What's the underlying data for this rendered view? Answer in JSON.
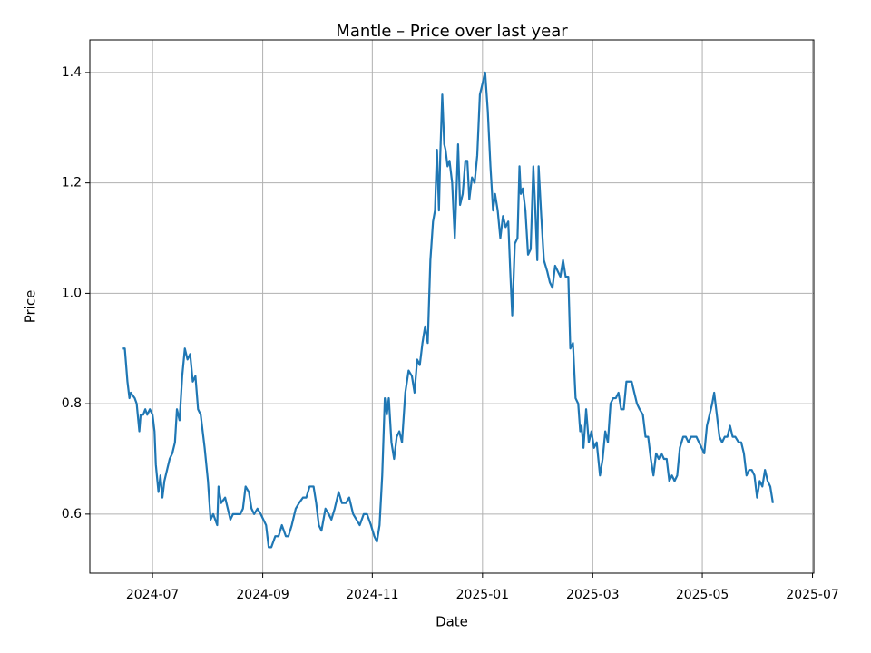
{
  "chart_data": {
    "type": "line",
    "title": "Mantle – Price over last year",
    "x_label": "Date",
    "y_label": "Price",
    "color": "#1f77b4",
    "grid": true,
    "xlim": [
      2024.405,
      2025.502
    ],
    "ylim": [
      0.493,
      1.459
    ],
    "xticks": [
      {
        "value": 2024.5,
        "label": "2024-07"
      },
      {
        "value": 2024.667,
        "label": "2024-09"
      },
      {
        "value": 2024.833,
        "label": "2024-11"
      },
      {
        "value": 2025.0,
        "label": "2025-01"
      },
      {
        "value": 2025.167,
        "label": "2025-03"
      },
      {
        "value": 2025.333,
        "label": "2025-05"
      },
      {
        "value": 2025.5,
        "label": "2025-07"
      }
    ],
    "yticks": [
      0.6,
      0.8,
      {
        "value": 1,
        "label": "1.0"
      },
      1.2,
      1.4
    ],
    "x": [
      2024.455,
      2024.458,
      2024.462,
      2024.465,
      2024.467,
      2024.473,
      2024.476,
      2024.48,
      2024.482,
      2024.486,
      2024.489,
      2024.492,
      2024.496,
      2024.5,
      2024.503,
      2024.505,
      2024.509,
      2024.512,
      2024.515,
      2024.518,
      2024.522,
      2024.526,
      2024.53,
      2024.534,
      2024.537,
      2024.541,
      2024.545,
      2024.549,
      2024.553,
      2024.557,
      2024.561,
      2024.565,
      2024.569,
      2024.573,
      2024.579,
      2024.584,
      2024.588,
      2024.592,
      2024.598,
      2024.6,
      2024.604,
      2024.61,
      2024.614,
      2024.618,
      2024.622,
      2024.627,
      2024.633,
      2024.637,
      2024.641,
      2024.646,
      2024.65,
      2024.654,
      2024.659,
      2024.664,
      2024.668,
      2024.672,
      2024.676,
      2024.68,
      2024.686,
      2024.691,
      2024.696,
      2024.702,
      2024.706,
      2024.711,
      2024.717,
      2024.722,
      2024.728,
      2024.733,
      2024.738,
      2024.744,
      2024.748,
      2024.752,
      2024.756,
      2024.762,
      2024.767,
      2024.771,
      2024.776,
      2024.782,
      2024.787,
      2024.793,
      2024.798,
      2024.804,
      2024.809,
      2024.814,
      2024.82,
      2024.825,
      2024.831,
      2024.836,
      2024.84,
      2024.844,
      2024.848,
      2024.852,
      2024.855,
      2024.858,
      2024.862,
      2024.866,
      2024.87,
      2024.874,
      2024.878,
      2024.883,
      2024.888,
      2024.893,
      2024.897,
      2024.901,
      2024.905,
      2024.909,
      2024.913,
      2024.917,
      2024.921,
      2024.925,
      2024.928,
      2024.931,
      2024.934,
      2024.936,
      2024.939,
      2024.942,
      2024.944,
      2024.947,
      2024.95,
      2024.954,
      2024.958,
      2024.961,
      2024.963,
      2024.966,
      2024.97,
      2024.974,
      2024.977,
      2024.98,
      2024.984,
      2024.988,
      2024.992,
      2024.996,
      2025.0,
      2025.004,
      2025.008,
      2025.012,
      2025.016,
      2025.019,
      2025.023,
      2025.027,
      2025.031,
      2025.035,
      2025.039,
      2025.042,
      2025.045,
      2025.049,
      2025.053,
      2025.056,
      2025.058,
      2025.061,
      2025.065,
      2025.069,
      2025.073,
      2025.077,
      2025.08,
      2025.083,
      2025.085,
      2025.089,
      2025.093,
      2025.098,
      2025.102,
      2025.106,
      2025.11,
      2025.114,
      2025.118,
      2025.122,
      2025.126,
      2025.13,
      2025.133,
      2025.137,
      2025.141,
      2025.145,
      2025.148,
      2025.15,
      2025.153,
      2025.157,
      2025.161,
      2025.165,
      2025.169,
      2025.173,
      2025.178,
      2025.182,
      2025.186,
      2025.19,
      2025.194,
      2025.198,
      2025.202,
      2025.206,
      2025.21,
      2025.214,
      2025.218,
      2025.222,
      2025.226,
      2025.23,
      2025.234,
      2025.238,
      2025.243,
      2025.247,
      2025.251,
      2025.255,
      2025.259,
      2025.263,
      2025.267,
      2025.271,
      2025.275,
      2025.279,
      2025.283,
      2025.287,
      2025.291,
      2025.295,
      2025.299,
      2025.304,
      2025.308,
      2025.312,
      2025.316,
      2025.32,
      2025.324,
      2025.328,
      2025.332,
      2025.336,
      2025.34,
      2025.344,
      2025.348,
      2025.351,
      2025.355,
      2025.359,
      2025.363,
      2025.367,
      2025.371,
      2025.375,
      2025.379,
      2025.383,
      2025.388,
      2025.392,
      2025.396,
      2025.4,
      2025.404,
      2025.408,
      2025.412,
      2025.416,
      2025.42,
      2025.424,
      2025.428,
      2025.432,
      2025.436,
      2025.44
    ],
    "values": [
      0.9,
      0.9,
      0.84,
      0.81,
      0.82,
      0.81,
      0.8,
      0.75,
      0.78,
      0.78,
      0.79,
      0.78,
      0.79,
      0.78,
      0.75,
      0.69,
      0.64,
      0.67,
      0.63,
      0.66,
      0.68,
      0.7,
      0.71,
      0.73,
      0.79,
      0.77,
      0.85,
      0.9,
      0.88,
      0.89,
      0.84,
      0.85,
      0.79,
      0.78,
      0.72,
      0.66,
      0.59,
      0.6,
      0.58,
      0.65,
      0.62,
      0.63,
      0.61,
      0.59,
      0.6,
      0.6,
      0.6,
      0.61,
      0.65,
      0.64,
      0.61,
      0.6,
      0.61,
      0.6,
      0.59,
      0.58,
      0.54,
      0.54,
      0.56,
      0.56,
      0.58,
      0.56,
      0.56,
      0.58,
      0.61,
      0.62,
      0.63,
      0.63,
      0.65,
      0.65,
      0.62,
      0.58,
      0.57,
      0.61,
      0.6,
      0.59,
      0.61,
      0.64,
      0.62,
      0.62,
      0.63,
      0.6,
      0.59,
      0.58,
      0.6,
      0.6,
      0.58,
      0.56,
      0.55,
      0.58,
      0.67,
      0.81,
      0.78,
      0.81,
      0.73,
      0.7,
      0.74,
      0.75,
      0.73,
      0.82,
      0.86,
      0.85,
      0.82,
      0.88,
      0.87,
      0.91,
      0.94,
      0.91,
      1.06,
      1.13,
      1.15,
      1.26,
      1.15,
      1.25,
      1.36,
      1.27,
      1.26,
      1.23,
      1.24,
      1.2,
      1.1,
      1.2,
      1.27,
      1.16,
      1.18,
      1.24,
      1.24,
      1.17,
      1.21,
      1.2,
      1.25,
      1.36,
      1.38,
      1.4,
      1.33,
      1.23,
      1.15,
      1.18,
      1.15,
      1.1,
      1.14,
      1.12,
      1.13,
      1.04,
      0.96,
      1.09,
      1.1,
      1.23,
      1.18,
      1.19,
      1.15,
      1.07,
      1.08,
      1.23,
      1.15,
      1.06,
      1.23,
      1.14,
      1.06,
      1.04,
      1.02,
      1.01,
      1.05,
      1.04,
      1.03,
      1.06,
      1.03,
      1.03,
      0.9,
      0.91,
      0.81,
      0.8,
      0.75,
      0.76,
      0.72,
      0.79,
      0.73,
      0.75,
      0.72,
      0.73,
      0.67,
      0.7,
      0.75,
      0.73,
      0.8,
      0.81,
      0.81,
      0.82,
      0.79,
      0.79,
      0.84,
      0.84,
      0.84,
      0.82,
      0.8,
      0.79,
      0.78,
      0.74,
      0.74,
      0.7,
      0.67,
      0.71,
      0.7,
      0.71,
      0.7,
      0.7,
      0.66,
      0.67,
      0.66,
      0.67,
      0.72,
      0.74,
      0.74,
      0.73,
      0.74,
      0.74,
      0.74,
      0.73,
      0.72,
      0.71,
      0.76,
      0.78,
      0.8,
      0.82,
      0.78,
      0.74,
      0.73,
      0.74,
      0.74,
      0.76,
      0.74,
      0.74,
      0.73,
      0.73,
      0.71,
      0.67,
      0.68,
      0.68,
      0.67,
      0.63,
      0.66,
      0.65,
      0.68,
      0.66,
      0.65,
      0.62
    ]
  }
}
